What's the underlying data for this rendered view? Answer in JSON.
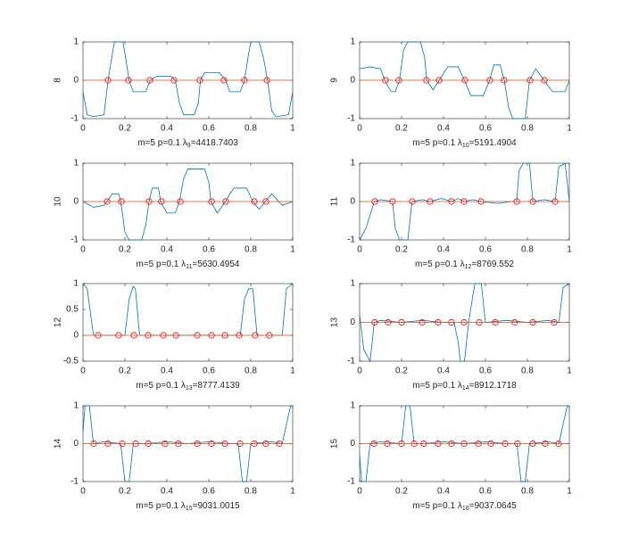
{
  "chart_data": [
    {
      "type": "line",
      "ylabel": "8",
      "xlabel": {
        "prefix": "m=5 p=0.1 λ",
        "subscript": "9",
        "suffix": "=4418.7403"
      },
      "xlim": [
        0,
        1
      ],
      "ylim": [
        -1,
        1
      ],
      "xticks": [
        0,
        0.2,
        0.4,
        0.6,
        0.8,
        1
      ],
      "yticks": [
        -1,
        0,
        1
      ],
      "series": [
        {
          "color": "#0072bd",
          "x": [
            0,
            0.02,
            0.05,
            0.1,
            0.12,
            0.14,
            0.15,
            0.19,
            0.2,
            0.22,
            0.24,
            0.3,
            0.32,
            0.35,
            0.42,
            0.44,
            0.46,
            0.48,
            0.53,
            0.55,
            0.56,
            0.58,
            0.65,
            0.68,
            0.7,
            0.75,
            0.77,
            0.79,
            0.8,
            0.84,
            0.86,
            0.88,
            0.9,
            0.92,
            0.98,
            1
          ],
          "values": [
            -0.3,
            -0.9,
            -0.95,
            -0.9,
            0,
            0.7,
            1,
            1,
            0.7,
            0,
            -0.3,
            -0.3,
            0,
            0.1,
            0.1,
            0,
            -0.6,
            -0.9,
            -0.9,
            -0.6,
            0,
            0.2,
            0.2,
            0,
            -0.3,
            -0.3,
            0,
            0.7,
            1,
            1,
            0.6,
            0,
            -0.8,
            -0.95,
            -0.9,
            -0.3
          ]
        },
        {
          "color": "#d95319",
          "x": [
            0,
            1
          ],
          "values": [
            0,
            0
          ]
        },
        {
          "color": "#ff0000",
          "marker": "circle",
          "x": [
            0.119,
            0.217,
            0.319,
            0.434,
            0.557,
            0.672,
            0.77,
            0.877
          ],
          "values": [
            0,
            0,
            0,
            0,
            0,
            0,
            0,
            0
          ]
        }
      ]
    },
    {
      "type": "line",
      "ylabel": "9",
      "xlabel": {
        "prefix": "m=5 p=0.1 λ",
        "subscript": "10",
        "suffix": "=5191.4904"
      },
      "xlim": [
        0,
        1
      ],
      "ylim": [
        -1,
        1
      ],
      "xticks": [
        0,
        0.2,
        0.4,
        0.6,
        0.8,
        1
      ],
      "yticks": [
        -1,
        0,
        1
      ],
      "series": [
        {
          "color": "#0072bd",
          "x": [
            0,
            0.05,
            0.1,
            0.12,
            0.15,
            0.17,
            0.19,
            0.21,
            0.23,
            0.29,
            0.31,
            0.32,
            0.35,
            0.38,
            0.42,
            0.47,
            0.5,
            0.53,
            0.59,
            0.62,
            0.64,
            0.67,
            0.69,
            0.71,
            0.73,
            0.79,
            0.81,
            0.84,
            0.88,
            0.92,
            0.98,
            1
          ],
          "values": [
            0.3,
            0.35,
            0.3,
            0,
            -0.3,
            -0.3,
            0,
            0.8,
            1,
            1,
            0.6,
            0,
            -0.25,
            0,
            0.35,
            0.35,
            0,
            -0.4,
            -0.4,
            0,
            0.4,
            0.4,
            0,
            -0.7,
            -1,
            -1,
            0,
            0.3,
            0,
            -0.3,
            -0.3,
            0
          ]
        },
        {
          "color": "#d95319",
          "x": [
            0,
            1
          ],
          "values": [
            0,
            0
          ]
        },
        {
          "color": "#ff0000",
          "marker": "circle",
          "x": [
            0.123,
            0.187,
            0.319,
            0.379,
            0.502,
            0.621,
            0.689,
            0.813,
            0.881
          ],
          "values": [
            0,
            0,
            0,
            0,
            0,
            0,
            0,
            0,
            0
          ]
        }
      ]
    },
    {
      "type": "line",
      "ylabel": "10",
      "xlabel": {
        "prefix": "m=5 p=0.1 λ",
        "subscript": "11",
        "suffix": "=5630.4954"
      },
      "xlim": [
        0,
        1
      ],
      "ylim": [
        -1,
        1
      ],
      "xticks": [
        0,
        0.2,
        0.4,
        0.6,
        0.8,
        1
      ],
      "yticks": [
        -1,
        0,
        1
      ],
      "series": [
        {
          "color": "#0072bd",
          "x": [
            0,
            0.05,
            0.1,
            0.115,
            0.14,
            0.17,
            0.18,
            0.2,
            0.22,
            0.28,
            0.3,
            0.315,
            0.33,
            0.36,
            0.37,
            0.4,
            0.44,
            0.46,
            0.48,
            0.5,
            0.58,
            0.6,
            0.61,
            0.64,
            0.68,
            0.7,
            0.72,
            0.78,
            0.81,
            0.84,
            0.87,
            0.9,
            0.95,
            1
          ],
          "values": [
            0,
            -0.15,
            -0.1,
            0,
            0.2,
            0.2,
            0,
            -0.8,
            -1,
            -1,
            -0.6,
            0,
            0.35,
            0.35,
            0,
            -0.3,
            -0.3,
            0,
            0.6,
            0.85,
            0.85,
            0.5,
            0,
            -0.3,
            0,
            0.2,
            0.35,
            0.35,
            0,
            -0.2,
            0,
            0.2,
            -0.1,
            0
          ]
        },
        {
          "color": "#d95319",
          "x": [
            0,
            1
          ],
          "values": [
            0,
            0
          ]
        },
        {
          "color": "#ff0000",
          "marker": "circle",
          "x": [
            0.115,
            0.183,
            0.315,
            0.374,
            0.464,
            0.613,
            0.681,
            0.817,
            0.872
          ],
          "values": [
            0,
            0,
            0,
            0,
            0,
            0,
            0,
            0,
            0
          ]
        }
      ]
    },
    {
      "type": "line",
      "ylabel": "11",
      "xlabel": {
        "prefix": "m=5 p=0.1 λ",
        "subscript": "12",
        "suffix": "=8769.552"
      },
      "xlim": [
        0,
        1
      ],
      "ylim": [
        -1,
        1
      ],
      "xticks": [
        0,
        0.2,
        0.4,
        0.6,
        0.8,
        1
      ],
      "yticks": [
        -1,
        0,
        1
      ],
      "series": [
        {
          "color": "#0072bd",
          "x": [
            0,
            0.03,
            0.07,
            0.1,
            0.157,
            0.17,
            0.19,
            0.23,
            0.25,
            0.3,
            0.336,
            0.39,
            0.438,
            0.47,
            0.498,
            0.54,
            0.579,
            0.66,
            0.72,
            0.749,
            0.76,
            0.78,
            0.81,
            0.826,
            0.88,
            0.932,
            0.95,
            0.98,
            1
          ],
          "values": [
            -1,
            -0.7,
            0,
            0.05,
            0,
            -0.7,
            -1,
            -1,
            0,
            0.05,
            0,
            0.08,
            0,
            0.08,
            0,
            0.05,
            0,
            -0.05,
            0,
            0,
            0.8,
            1,
            1,
            0,
            0.05,
            0,
            0.9,
            1,
            0
          ]
        },
        {
          "color": "#d95319",
          "x": [
            0,
            1
          ],
          "values": [
            0,
            0
          ]
        },
        {
          "color": "#ff0000",
          "marker": "circle",
          "x": [
            0.072,
            0.157,
            0.251,
            0.336,
            0.438,
            0.498,
            0.579,
            0.749,
            0.826,
            0.932
          ],
          "values": [
            0,
            0,
            0,
            0,
            0,
            0,
            0,
            0,
            0,
            0
          ]
        }
      ]
    },
    {
      "type": "line",
      "ylabel": "12",
      "xlabel": {
        "prefix": "m=5 p=0.1 λ",
        "subscript": "13",
        "suffix": "=8777.4139"
      },
      "xlim": [
        0,
        1
      ],
      "ylim": [
        -0.5,
        1
      ],
      "xticks": [
        0,
        0.2,
        0.4,
        0.6,
        0.8,
        1
      ],
      "yticks": [
        -0.5,
        0,
        0.5,
        1
      ],
      "series": [
        {
          "color": "#0072bd",
          "x": [
            0,
            0.02,
            0.05,
            0.1,
            0.17,
            0.2,
            0.22,
            0.24,
            0.25,
            0.27,
            0.3,
            0.4,
            0.5,
            0.6,
            0.7,
            0.75,
            0.77,
            0.79,
            0.81,
            0.83,
            0.86,
            0.92,
            0.95,
            0.97,
            1
          ],
          "values": [
            1,
            0.9,
            0,
            0,
            0,
            0,
            0.7,
            0.95,
            0.9,
            0,
            0,
            0,
            0,
            0,
            0,
            0,
            0.7,
            0.9,
            0.9,
            0,
            0,
            0,
            0,
            0.9,
            1
          ]
        },
        {
          "color": "#d95319",
          "x": [
            0,
            1
          ],
          "values": [
            0,
            0
          ]
        },
        {
          "color": "#ff0000",
          "marker": "circle",
          "x": [
            0.072,
            0.17,
            0.243,
            0.311,
            0.383,
            0.443,
            0.545,
            0.613,
            0.677,
            0.745,
            0.821,
            0.889
          ],
          "values": [
            0,
            0,
            0,
            0,
            0,
            0,
            0,
            0,
            0,
            0,
            0,
            0
          ]
        }
      ]
    },
    {
      "type": "line",
      "ylabel": "13",
      "xlabel": {
        "prefix": "m=5 p=0.1 λ",
        "subscript": "14",
        "suffix": "=8912.1718"
      },
      "xlim": [
        0,
        1
      ],
      "ylim": [
        -1,
        1
      ],
      "xticks": [
        0,
        0.2,
        0.4,
        0.6,
        0.8,
        1
      ],
      "yticks": [
        -1,
        0,
        1
      ],
      "series": [
        {
          "color": "#0072bd",
          "x": [
            0,
            0.02,
            0.05,
            0.07,
            0.1,
            0.2,
            0.3,
            0.4,
            0.45,
            0.47,
            0.48,
            0.5,
            0.52,
            0.54,
            0.55,
            0.58,
            0.6,
            0.7,
            0.8,
            0.9,
            0.95,
            0.97,
            1
          ],
          "values": [
            0.2,
            -0.7,
            -1,
            0,
            0.05,
            0,
            0.05,
            0,
            0,
            -0.5,
            -1,
            -1,
            0,
            0.7,
            1,
            1,
            0,
            0.05,
            0,
            0.05,
            0,
            0.9,
            1
          ]
        },
        {
          "color": "#d95319",
          "x": [
            0,
            1
          ],
          "values": [
            0,
            0
          ]
        },
        {
          "color": "#ff0000",
          "marker": "circle",
          "x": [
            0.072,
            0.136,
            0.2,
            0.298,
            0.374,
            0.438,
            0.498,
            0.57,
            0.647,
            0.74,
            0.826,
            0.928
          ],
          "values": [
            0,
            0,
            0,
            0,
            0,
            0,
            0,
            0,
            0,
            0,
            0,
            0
          ]
        }
      ]
    },
    {
      "type": "line",
      "ylabel": "14",
      "xlabel": {
        "prefix": "m=5 p=0.1 λ",
        "subscript": "15",
        "suffix": "=9031.0015"
      },
      "xlim": [
        0,
        1
      ],
      "ylim": [
        -1,
        1
      ],
      "xticks": [
        0,
        0.2,
        0.4,
        0.6,
        0.8,
        1
      ],
      "yticks": [
        -1,
        0,
        1
      ],
      "series": [
        {
          "color": "#0072bd",
          "x": [
            0,
            0.01,
            0.03,
            0.05,
            0.1,
            0.18,
            0.2,
            0.22,
            0.24,
            0.3,
            0.4,
            0.5,
            0.6,
            0.7,
            0.74,
            0.76,
            0.78,
            0.8,
            0.9,
            0.95,
            0.97,
            0.99,
            1
          ],
          "values": [
            0.3,
            1,
            1,
            0,
            0.05,
            0,
            -1,
            -1,
            0,
            0,
            0.05,
            0,
            0.05,
            0,
            0,
            -1,
            -1,
            0,
            0.05,
            0,
            0.5,
            1,
            1
          ]
        },
        {
          "color": "#d95319",
          "x": [
            0,
            1
          ],
          "values": [
            0,
            0
          ]
        },
        {
          "color": "#ff0000",
          "marker": "circle",
          "x": [
            0.051,
            0.119,
            0.187,
            0.251,
            0.311,
            0.391,
            0.455,
            0.545,
            0.613,
            0.677,
            0.749,
            0.817,
            0.872,
            0.936
          ],
          "values": [
            0,
            0,
            0,
            0,
            0,
            0,
            0,
            0,
            0,
            0,
            0,
            0,
            0,
            0
          ]
        }
      ]
    },
    {
      "type": "line",
      "ylabel": "15",
      "xlabel": {
        "prefix": "m=5 p=0.1 λ",
        "subscript": "16",
        "suffix": "=9037.0645"
      },
      "xlim": [
        0,
        1
      ],
      "ylim": [
        -1,
        1
      ],
      "xticks": [
        0,
        0.2,
        0.4,
        0.6,
        0.8,
        1
      ],
      "yticks": [
        -1,
        0,
        1
      ],
      "series": [
        {
          "color": "#0072bd",
          "x": [
            0,
            0.01,
            0.03,
            0.05,
            0.1,
            0.2,
            0.22,
            0.24,
            0.26,
            0.3,
            0.4,
            0.5,
            0.6,
            0.7,
            0.75,
            0.77,
            0.79,
            0.81,
            0.9,
            0.95,
            0.97,
            0.99,
            1
          ],
          "values": [
            -0.3,
            -1,
            -1,
            0,
            0.05,
            0,
            1,
            1,
            0,
            0,
            0.05,
            0,
            0.05,
            0,
            0,
            -1,
            -1,
            0,
            0.05,
            0,
            0.5,
            1,
            1
          ]
        },
        {
          "color": "#d95319",
          "x": [
            0,
            1
          ],
          "values": [
            0,
            0
          ]
        },
        {
          "color": "#ff0000",
          "marker": "circle",
          "x": [
            0.068,
            0.132,
            0.2,
            0.26,
            0.306,
            0.374,
            0.438,
            0.498,
            0.566,
            0.626,
            0.694,
            0.753,
            0.826,
            0.885,
            0.949
          ],
          "values": [
            0,
            0,
            0,
            0,
            0,
            0,
            0,
            0,
            0,
            0,
            0,
            0,
            0,
            0,
            0
          ]
        }
      ]
    }
  ]
}
